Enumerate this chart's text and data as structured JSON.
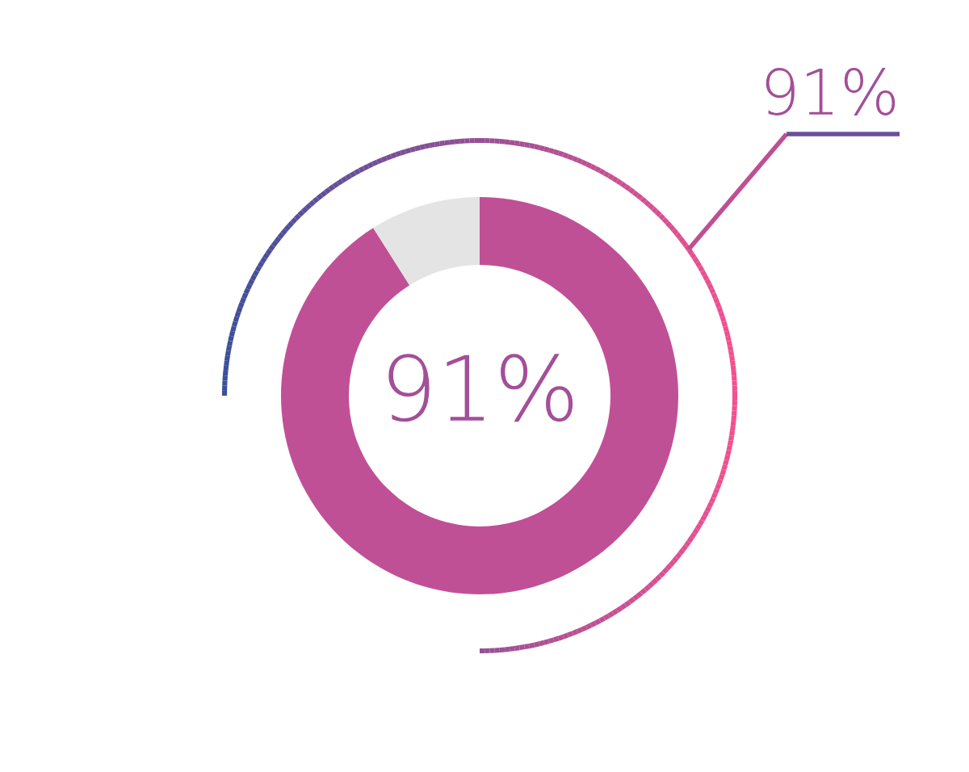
{
  "chart_data": {
    "type": "donut",
    "categories": [
      null,
      null
    ],
    "values": [
      91,
      9
    ],
    "colors": [
      "#c05096",
      "#e4e4e4"
    ],
    "value_labels": [
      "91%",
      null
    ],
    "annotations": [
      "91%"
    ]
  }
}
